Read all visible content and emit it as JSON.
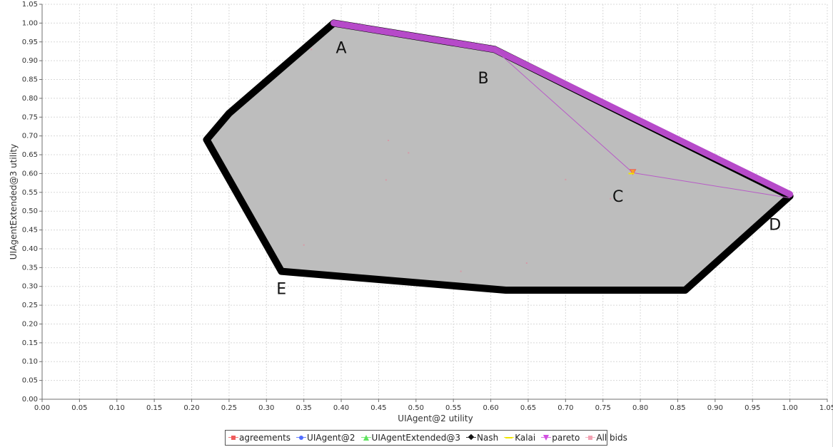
{
  "chart_data": {
    "type": "scatter",
    "title": "",
    "xlabel": "UIAgent@2 utility",
    "ylabel": "UIAgentExtended@3 utility",
    "xlim": [
      0.0,
      1.05
    ],
    "ylim": [
      0.0,
      1.05
    ],
    "grid": true,
    "legend_position": "bottom-center",
    "x_ticks": [
      "0.00",
      "0.05",
      "0.10",
      "0.15",
      "0.20",
      "0.25",
      "0.30",
      "0.35",
      "0.40",
      "0.45",
      "0.50",
      "0.55",
      "0.60",
      "0.65",
      "0.70",
      "0.75",
      "0.80",
      "0.85",
      "0.90",
      "0.95",
      "1.00",
      "1.05"
    ],
    "y_ticks": [
      "0.00",
      "0.05",
      "0.10",
      "0.15",
      "0.20",
      "0.25",
      "0.30",
      "0.35",
      "0.40",
      "0.45",
      "0.50",
      "0.55",
      "0.60",
      "0.65",
      "0.70",
      "0.75",
      "0.80",
      "0.85",
      "0.90",
      "0.95",
      "1.00",
      "1.05"
    ],
    "hull": [
      {
        "x": 0.39,
        "y": 1.0
      },
      {
        "x": 0.605,
        "y": 0.93
      },
      {
        "x": 1.0,
        "y": 0.54
      },
      {
        "x": 0.86,
        "y": 0.29
      },
      {
        "x": 0.62,
        "y": 0.29
      },
      {
        "x": 0.32,
        "y": 0.34
      },
      {
        "x": 0.22,
        "y": 0.69
      },
      {
        "x": 0.25,
        "y": 0.76
      }
    ],
    "pareto_frontier": [
      {
        "x": 0.39,
        "y": 1.0
      },
      {
        "x": 0.605,
        "y": 0.93
      },
      {
        "x": 1.0,
        "y": 0.545
      }
    ],
    "negotiation_path": [
      {
        "x": 0.605,
        "y": 0.93
      },
      {
        "x": 0.79,
        "y": 0.602
      },
      {
        "x": 1.0,
        "y": 0.535
      }
    ],
    "agreement": {
      "x": 0.79,
      "y": 0.605
    },
    "kalai": {
      "x": 0.788,
      "y": 0.6
    },
    "bids": [
      {
        "x": 0.36,
        "y": 0.93
      },
      {
        "x": 0.463,
        "y": 0.688
      },
      {
        "x": 0.49,
        "y": 0.655
      },
      {
        "x": 0.46,
        "y": 0.583
      },
      {
        "x": 0.35,
        "y": 0.41
      },
      {
        "x": 0.56,
        "y": 0.34
      },
      {
        "x": 0.648,
        "y": 0.362
      },
      {
        "x": 0.7,
        "y": 0.584
      },
      {
        "x": 0.76,
        "y": 0.533
      }
    ],
    "point_labels": [
      {
        "text": "A",
        "x": 0.4,
        "y": 0.92
      },
      {
        "text": "B",
        "x": 0.59,
        "y": 0.84
      },
      {
        "text": "C",
        "x": 0.77,
        "y": 0.525
      },
      {
        "text": "D",
        "x": 0.98,
        "y": 0.45
      },
      {
        "text": "E",
        "x": 0.32,
        "y": 0.28
      }
    ],
    "legend": [
      {
        "label": "agreements",
        "color": "#ef5b5b",
        "icon": "square"
      },
      {
        "label": "UIAgent@2",
        "color": "#4f6cff",
        "icon": "circle"
      },
      {
        "label": "UIAgentExtended@3",
        "color": "#5ee35e",
        "icon": "triangle"
      },
      {
        "label": "Nash",
        "color": "#111111",
        "icon": "diamond"
      },
      {
        "label": "Kalai",
        "color": "#f1e700",
        "icon": "line"
      },
      {
        "label": "pareto",
        "color": "#d14fe0",
        "icon": "down-triangle"
      },
      {
        "label": "All bids",
        "color": "#f2a2b3",
        "icon": "small-square"
      }
    ],
    "colors": {
      "fill": "#bdbdbd",
      "outline": "#000000",
      "pareto": "#b64ac9",
      "path": "#b85cc7",
      "agreement": "#ef5b5b",
      "kalai": "#f1e700"
    }
  }
}
